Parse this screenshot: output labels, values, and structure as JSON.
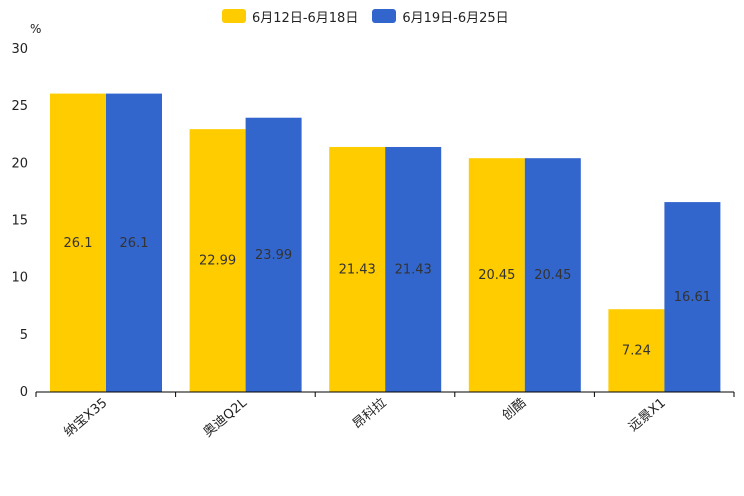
{
  "chart_data": {
    "type": "bar",
    "title": "",
    "unit": "%",
    "xlabel": "",
    "ylabel": "%",
    "ylim": [
      0,
      30
    ],
    "yticks": [
      0,
      5,
      10,
      15,
      20,
      25,
      30
    ],
    "categories": [
      "纳宝X35",
      "奥迪Q2L",
      "昂科拉",
      "创酷",
      "远景X1"
    ],
    "series": [
      {
        "name": "6月12日-6月18日",
        "color": "#FFCC00",
        "values": [
          26.1,
          22.99,
          21.43,
          20.45,
          7.24
        ]
      },
      {
        "name": "6月19日-6月25日",
        "color": "#3366CC",
        "values": [
          26.1,
          23.99,
          21.43,
          20.45,
          16.61
        ]
      }
    ],
    "legend_position": "top-center"
  }
}
